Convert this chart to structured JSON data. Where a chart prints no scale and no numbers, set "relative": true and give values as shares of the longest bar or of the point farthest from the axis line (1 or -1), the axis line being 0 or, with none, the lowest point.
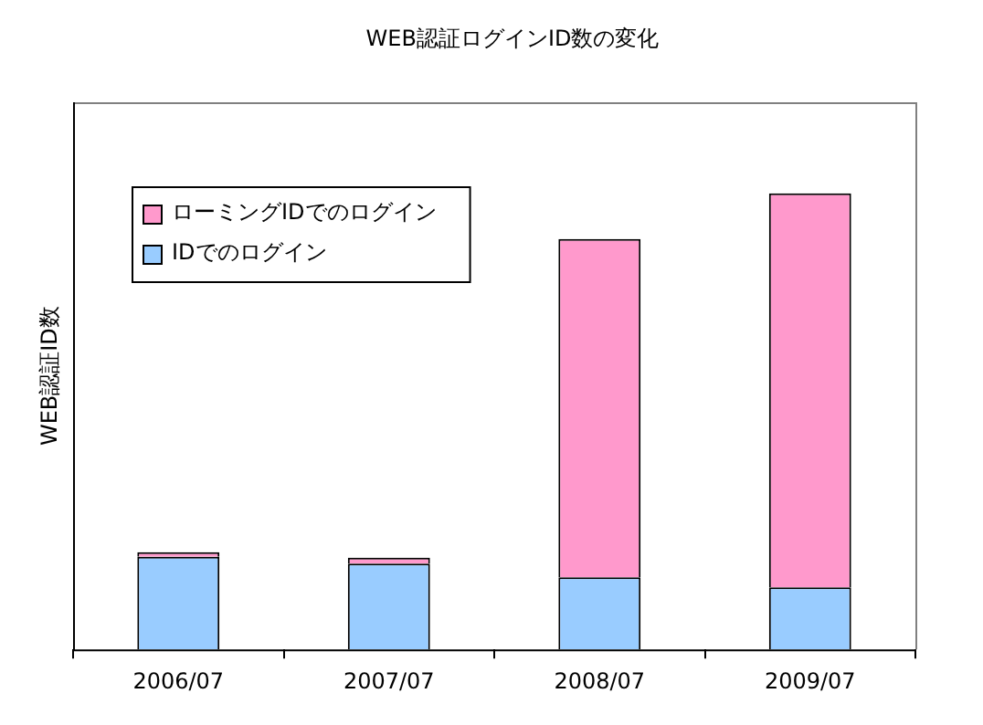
{
  "chart_data": {
    "type": "bar",
    "title": "WEB認証ログインID数の変化",
    "ylabel": "WEB認証ID数",
    "categories": [
      "2006/07",
      "2007/07",
      "2008/07",
      "2009/07"
    ],
    "stacked": true,
    "relative": true,
    "legend": "top left",
    "series": [
      {
        "name": "IDでのログイン",
        "color": "#99ccff",
        "values": [
          0.203,
          0.188,
          0.158,
          0.136
        ]
      },
      {
        "name": "ローミングIDでのログイン",
        "color": "#ff99cc",
        "values": [
          0.01,
          0.013,
          0.742,
          0.864
        ]
      }
    ]
  }
}
